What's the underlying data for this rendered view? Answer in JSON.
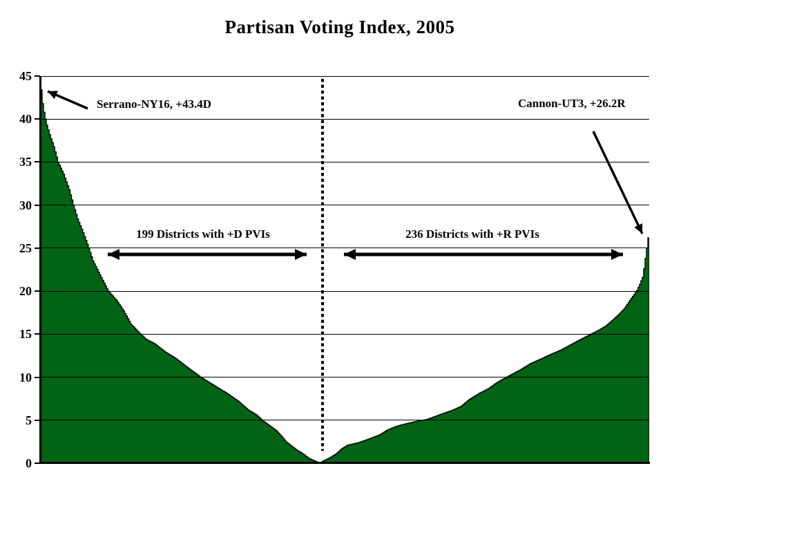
{
  "title": "Partisan Voting Index, 2005",
  "annotations": {
    "max_d_label": "Serrano-NY16, +43.4D",
    "max_r_label": "Cannon-UT3, +26.2R",
    "d_districts_label": "199 Districts with +D PVIs",
    "r_districts_label": "236 Districts with +R PVIs"
  },
  "colors": {
    "area_fill": "#006414",
    "area_outline": "#000000",
    "ink": "#000000"
  },
  "chart_data": {
    "type": "area",
    "title": "Partisan Voting Index, 2005",
    "xlabel": "",
    "ylabel": "",
    "x_meaning": "435 U.S. House districts ranked from most Democratic-leaning PVI (left) to most Republican-leaning PVI (right)",
    "y_meaning": "PVI margin (absolute value)",
    "ylim": [
      0,
      45
    ],
    "yticks": [
      45,
      40,
      35,
      30,
      25,
      20,
      15,
      10,
      5,
      0
    ],
    "grid": true,
    "legend": "none",
    "d_district_count": 199,
    "r_district_count": 236,
    "divider_after_rank": 199,
    "extremes": {
      "most_democratic": {
        "district": "Serrano-NY16",
        "pvi": "+43.4D",
        "value": 43.4
      },
      "most_republican": {
        "district": "Cannon-UT3",
        "pvi": "+26.2R",
        "value": 26.2
      }
    },
    "profile": [
      [
        1,
        43.4
      ],
      [
        2,
        41.8
      ],
      [
        3,
        40.8
      ],
      [
        4,
        40.0
      ],
      [
        5,
        39.3
      ],
      [
        7,
        38.2
      ],
      [
        10,
        36.8
      ],
      [
        13,
        35.0
      ],
      [
        17,
        33.6
      ],
      [
        21,
        31.8
      ],
      [
        24,
        30.0
      ],
      [
        27,
        28.4
      ],
      [
        31,
        26.8
      ],
      [
        35,
        25.0
      ],
      [
        38,
        23.5
      ],
      [
        43,
        21.9
      ],
      [
        49,
        20.0
      ],
      [
        55,
        18.9
      ],
      [
        60,
        17.7
      ],
      [
        65,
        16.2
      ],
      [
        72,
        15.0
      ],
      [
        76,
        14.4
      ],
      [
        82,
        13.9
      ],
      [
        90,
        12.9
      ],
      [
        97,
        12.2
      ],
      [
        105,
        11.2
      ],
      [
        115,
        10.0
      ],
      [
        124,
        9.1
      ],
      [
        134,
        8.1
      ],
      [
        142,
        7.2
      ],
      [
        149,
        6.2
      ],
      [
        155,
        5.6
      ],
      [
        159,
        5.0
      ],
      [
        164,
        4.4
      ],
      [
        169,
        3.8
      ],
      [
        173,
        3.1
      ],
      [
        176,
        2.5
      ],
      [
        180,
        2.0
      ],
      [
        184,
        1.5
      ],
      [
        188,
        1.1
      ],
      [
        192,
        0.6
      ],
      [
        196,
        0.3
      ],
      [
        199,
        0.1
      ],
      [
        201,
        0.1
      ],
      [
        203,
        0.3
      ],
      [
        207,
        0.6
      ],
      [
        212,
        1.1
      ],
      [
        216,
        1.7
      ],
      [
        220,
        2.1
      ],
      [
        228,
        2.4
      ],
      [
        235,
        2.8
      ],
      [
        243,
        3.3
      ],
      [
        249,
        3.9
      ],
      [
        255,
        4.3
      ],
      [
        262,
        4.6
      ],
      [
        270,
        4.9
      ],
      [
        277,
        5.1
      ],
      [
        287,
        5.7
      ],
      [
        294,
        6.1
      ],
      [
        301,
        6.6
      ],
      [
        307,
        7.4
      ],
      [
        314,
        8.1
      ],
      [
        321,
        8.7
      ],
      [
        327,
        9.4
      ],
      [
        336,
        10.2
      ],
      [
        344,
        10.9
      ],
      [
        351,
        11.6
      ],
      [
        358,
        12.1
      ],
      [
        366,
        12.7
      ],
      [
        373,
        13.2
      ],
      [
        381,
        13.9
      ],
      [
        388,
        14.5
      ],
      [
        394,
        15.0
      ],
      [
        400,
        15.5
      ],
      [
        405,
        16.0
      ],
      [
        410,
        16.7
      ],
      [
        414,
        17.3
      ],
      [
        418,
        18.0
      ],
      [
        421,
        18.7
      ],
      [
        424,
        19.4
      ],
      [
        427,
        20.1
      ],
      [
        429,
        20.8
      ],
      [
        431,
        21.6
      ],
      [
        432,
        22.6
      ],
      [
        433,
        23.8
      ],
      [
        434,
        25.0
      ],
      [
        435,
        26.2
      ]
    ]
  }
}
